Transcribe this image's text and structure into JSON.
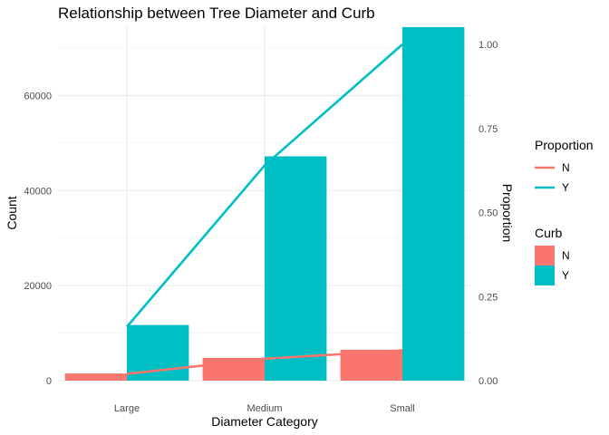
{
  "chart_data": {
    "type": "bar",
    "title": "Relationship between Tree Diameter and Curb",
    "xlabel": "Diameter Category",
    "ylabel": "Count",
    "y2label": "Proportion",
    "categories": [
      "Large",
      "Medium",
      "Small"
    ],
    "ylim": [
      0,
      74000
    ],
    "y_ticks": [
      0,
      20000,
      40000,
      60000
    ],
    "y2lim": [
      0,
      1
    ],
    "y2_ticks": [
      "0.00",
      "0.25",
      "0.50",
      "0.75",
      "1.00"
    ],
    "grid": true,
    "bar_series": [
      {
        "name": "N",
        "color": "#F8766D",
        "values": [
          1500,
          4800,
          6500
        ]
      },
      {
        "name": "Y",
        "color": "#00BFC4",
        "values": [
          11700,
          47200,
          74400
        ]
      }
    ],
    "line_series": [
      {
        "name": "N",
        "color": "#F8766D",
        "values": [
          0.02,
          0.065,
          0.09
        ]
      },
      {
        "name": "Y",
        "color": "#00BFC4",
        "values": [
          0.16,
          0.64,
          1.0
        ]
      }
    ],
    "legend_placement": "right",
    "legends": [
      {
        "title": "Proportion",
        "kind": "line",
        "items": [
          "N",
          "Y"
        ]
      },
      {
        "title": "Curb",
        "kind": "fill",
        "items": [
          "N",
          "Y"
        ]
      }
    ]
  }
}
